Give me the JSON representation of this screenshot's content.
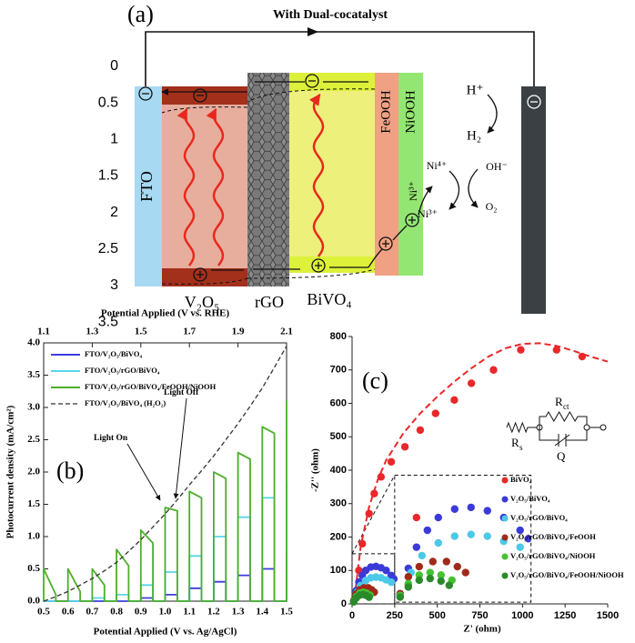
{
  "diagram": {
    "label": "(a)",
    "title": "With Dual-cocatalyst",
    "scale_ticks": [
      0,
      0.5,
      1,
      1.5,
      2,
      2.5,
      3,
      3.5
    ],
    "layers": [
      "FTO",
      "V₂O₅",
      "rGO",
      "BiVO₄",
      "FeOOH",
      "NiOOH"
    ],
    "species": {
      "h_plus": "H⁺",
      "h2": "H₂",
      "ni4": "Ni⁴⁺",
      "ni3_side": "Ni³⁺",
      "ni3": "Ni³⁺",
      "oh": "OH⁻",
      "o2": "O₂"
    }
  },
  "chart_data": [
    {
      "type": "line",
      "label": "(b)",
      "xlabel": "Potential Applied (V vs. Ag/AgCl)",
      "ylabel": "Photocurrent density (mA/cm²)",
      "x2label": "Potential Applied (V vs. RHE)",
      "xlim": [
        0.5,
        1.5
      ],
      "xticks": [
        0.5,
        0.6,
        0.7,
        0.8,
        0.9,
        {
          "value": 1,
          "label": "1.0"
        },
        1.1,
        1.2,
        1.3,
        1.4,
        1.5
      ],
      "x2lim": [
        1.1,
        2.1
      ],
      "x2ticks": [
        1.1,
        1.3,
        1.5,
        1.7,
        1.9,
        2.1
      ],
      "ylim": [
        0,
        4
      ],
      "yticks": [
        {
          "value": 0,
          "label": "0.0"
        },
        0.5,
        {
          "value": 1,
          "label": "1.0"
        },
        1.5,
        {
          "value": 2,
          "label": "2.0"
        },
        2.5,
        {
          "value": 3,
          "label": "3.0"
        },
        3.5,
        {
          "value": 4,
          "label": "4.0"
        }
      ],
      "x": [
        0.5,
        0.5,
        0.55,
        0.55,
        0.6,
        0.6,
        0.65,
        0.65,
        0.7,
        0.7,
        0.75,
        0.75,
        0.8,
        0.8,
        0.85,
        0.85,
        0.9,
        0.9,
        0.95,
        0.95,
        1.0,
        1.0,
        1.05,
        1.05,
        1.1,
        1.1,
        1.15,
        1.15,
        1.2,
        1.2,
        1.25,
        1.25,
        1.3,
        1.3,
        1.35,
        1.35,
        1.4,
        1.4,
        1.45,
        1.45,
        1.5,
        1.5
      ],
      "series": [
        {
          "name": "FTO/V₂O₅/BiVO₄",
          "color": "#3c3ce0",
          "dash": false,
          "values": [
            0,
            0,
            0,
            0,
            0,
            0,
            0,
            0,
            0,
            0,
            0,
            0,
            0,
            0,
            0,
            0,
            0,
            0.05,
            0.05,
            0,
            0,
            0.1,
            0.1,
            0,
            0,
            0.2,
            0.2,
            0,
            0,
            0.3,
            0.3,
            0,
            0,
            0.4,
            0.4,
            0,
            0,
            0.5,
            0.5,
            0,
            0,
            0.65
          ]
        },
        {
          "name": "FTO/V₂O₅/rGO/BiVO₄",
          "color": "#58d6ea",
          "dash": false,
          "values": [
            0,
            0,
            0,
            0,
            0,
            0,
            0,
            0,
            0,
            0.05,
            0.05,
            0,
            0,
            0.1,
            0.1,
            0,
            0,
            0.25,
            0.25,
            0,
            0,
            0.45,
            0.45,
            0,
            0,
            0.7,
            0.7,
            0,
            0,
            1.0,
            1.0,
            0,
            0,
            1.3,
            1.3,
            0,
            0,
            1.6,
            1.6,
            0,
            0,
            1.85
          ]
        },
        {
          "name": "FTO/V₂O₅/rGO/BiVO₄/FeOOH/NiOOH",
          "color": "#4cae2a",
          "dash": false,
          "values": [
            0,
            0.5,
            0.1,
            0,
            0,
            0.5,
            0.15,
            0,
            0,
            0.5,
            0.25,
            0,
            0,
            0.8,
            0.55,
            0,
            0,
            1.1,
            0.9,
            0,
            0,
            1.45,
            1.4,
            0,
            0,
            1.7,
            1.6,
            0,
            0,
            2.0,
            1.9,
            0,
            0,
            2.3,
            2.2,
            0,
            0,
            2.7,
            2.6,
            0,
            0,
            3.1
          ]
        },
        {
          "name": "FTO/V₂O₅/BiVO₄ (H₂O₂)",
          "color": "#333333",
          "dash": true,
          "values": [
            0,
            0,
            0.07,
            0.07,
            0.15,
            0.15,
            0.25,
            0.25,
            0.35,
            0.35,
            0.47,
            0.47,
            0.6,
            0.6,
            0.77,
            0.77,
            0.95,
            0.95,
            1.15,
            1.15,
            1.35,
            1.35,
            1.57,
            1.57,
            1.8,
            1.8,
            2.02,
            2.02,
            2.25,
            2.25,
            2.5,
            2.5,
            2.75,
            2.75,
            3.02,
            3.02,
            3.3,
            3.3,
            3.62,
            3.62,
            3.95,
            3.95
          ]
        }
      ],
      "annotations": [
        "Light On",
        "Light Off"
      ]
    },
    {
      "type": "scatter",
      "label": "(c)",
      "xlabel": "Z' (ohm)",
      "ylabel": "-Z'' (ohm)",
      "xlim": [
        0,
        1500
      ],
      "xticks": [
        0,
        250,
        500,
        750,
        1000,
        1250,
        1500
      ],
      "ylim": [
        0,
        800
      ],
      "yticks": [
        0,
        100,
        200,
        300,
        400,
        500,
        600,
        700,
        800
      ],
      "series": [
        {
          "name": "BiVO₄",
          "color": "#e8282a",
          "x": [
            25,
            40,
            60,
            100,
            130,
            170,
            230,
            310,
            400,
            490,
            600,
            700,
            830,
            990,
            1200,
            1350
          ],
          "values": [
            20,
            100,
            180,
            270,
            330,
            380,
            425,
            470,
            520,
            570,
            610,
            660,
            700,
            760,
            760,
            740
          ],
          "fit": {
            "x": [
              20,
              50,
              100,
              150,
              200,
              300,
              400,
              500,
              600,
              700,
              800,
              900,
              1000,
              1100,
              1200,
              1300,
              1400,
              1500
            ],
            "values": [
              40,
              170,
              290,
              370,
              430,
              510,
              570,
              620,
              665,
              705,
              740,
              765,
              778,
              780,
              772,
              757,
              740,
              725
            ]
          }
        },
        {
          "name": "V₂O₅/BiVO₄",
          "color": "#3a3ad8",
          "x": [
            10,
            25,
            40,
            60,
            80,
            110,
            140,
            170,
            200,
            230,
            245
          ],
          "values": [
            10,
            40,
            65,
            85,
            100,
            110,
            112,
            108,
            100,
            85,
            75
          ]
        },
        {
          "name": "V₂O₅/rGO/BiVO₄",
          "color": "#4cc8e8",
          "x": [
            10,
            30,
            50,
            80,
            110,
            140,
            170,
            200,
            230
          ],
          "values": [
            8,
            35,
            55,
            70,
            78,
            80,
            78,
            72,
            65
          ]
        },
        {
          "name": "V₂O₅/rGO/BiVO₄/FeOOH",
          "color": "#a02a1a",
          "x": [
            10,
            25,
            45,
            70,
            95,
            115,
            130
          ],
          "values": [
            10,
            30,
            42,
            48,
            48,
            42,
            35
          ]
        },
        {
          "name": "V₂O₅/rGO/BiVO₄/NiOOH",
          "color": "#44c232",
          "x": [
            10,
            25,
            45,
            65,
            85,
            105
          ],
          "values": [
            8,
            22,
            32,
            35,
            32,
            26
          ]
        },
        {
          "name": "V₂O₅/rGO/BiVO₄/FeOOH/NiOOH",
          "color": "#2a8a2a",
          "x": [
            10,
            25,
            45,
            65,
            85,
            100
          ],
          "values": [
            6,
            18,
            26,
            28,
            25,
            20
          ]
        }
      ],
      "inset": {
        "xlim": [
          0,
          250
        ],
        "ylim": [
          0,
          150
        ],
        "at_xlim": [
          250,
          1050
        ],
        "at_ylim": [
          5,
          385
        ]
      },
      "circuit": {
        "elements": [
          {
            "symbol": "R",
            "subscript": "ct"
          },
          {
            "symbol": "R",
            "subscript": "s"
          },
          {
            "symbol": "Q"
          }
        ]
      }
    }
  ]
}
